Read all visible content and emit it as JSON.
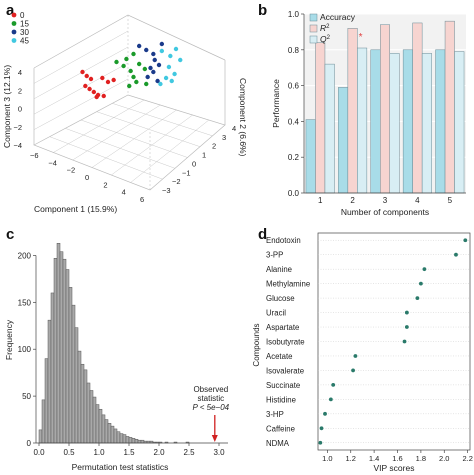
{
  "panels": {
    "a": "a",
    "b": "b",
    "c": "c",
    "d": "d"
  },
  "chart_data": [
    {
      "type": "scatter",
      "title": "",
      "xlabel": "Component 1 (15.9%)",
      "ylabel": "Component 3 (12.1%)",
      "zlabel": "Component 2 (6.6%)",
      "x_ticks": [
        "−6",
        "−4",
        "−2",
        "0",
        "2",
        "4",
        "6"
      ],
      "y_ticks": [
        "−4",
        "−2",
        "0",
        "2",
        "4"
      ],
      "z_ticks": [
        "−3",
        "−2",
        "−1",
        "0",
        "1",
        "2",
        "3",
        "4"
      ],
      "legend": [
        {
          "label": "0",
          "color": "#e02020"
        },
        {
          "label": "15",
          "color": "#1a9a2a"
        },
        {
          "label": "30",
          "color": "#1a3a8a"
        },
        {
          "label": "45",
          "color": "#40c8e0"
        }
      ],
      "legend_placement": "top-left",
      "series": [
        {
          "name": "0",
          "color": "#e02020",
          "points": [
            [
              -3.0,
              0.8,
              0
            ],
            [
              -2.7,
              0.4,
              0
            ],
            [
              -2.4,
              0.1,
              0
            ],
            [
              -2.8,
              -0.6,
              0
            ],
            [
              -2.5,
              -0.9,
              0
            ],
            [
              -2.2,
              -1.2,
              0
            ],
            [
              -1.9,
              -1.5,
              0
            ],
            [
              -1.5,
              -1.6,
              0
            ],
            [
              -1.2,
              -0.2,
              0
            ],
            [
              -0.8,
              0.0,
              0
            ],
            [
              -1.6,
              0.2,
              0
            ],
            [
              -2.0,
              -1.7,
              0
            ]
          ]
        },
        {
          "name": "15",
          "color": "#1a9a2a",
          "points": [
            [
              -0.6,
              1.8,
              0
            ],
            [
              0.1,
              2.1,
              0
            ],
            [
              -0.1,
              1.4,
              0
            ],
            [
              0.4,
              0.9,
              0
            ],
            [
              0.6,
              0.3,
              0
            ],
            [
              0.8,
              -0.2,
              0
            ],
            [
              0.3,
              -0.6,
              0
            ],
            [
              1.0,
              1.6,
              0
            ],
            [
              1.4,
              1.1,
              0
            ],
            [
              0.6,
              2.6,
              0
            ],
            [
              1.5,
              -0.4,
              0
            ]
          ]
        },
        {
          "name": "30",
          "color": "#1a3a8a",
          "points": [
            [
              1.0,
              3.4,
              0
            ],
            [
              1.5,
              3.0,
              0
            ],
            [
              2.0,
              2.6,
              0
            ],
            [
              2.1,
              2.0,
              0
            ],
            [
              1.8,
              1.2,
              0
            ],
            [
              2.0,
              0.8,
              0
            ],
            [
              2.3,
              -0.1,
              0
            ],
            [
              1.6,
              0.3,
              0
            ],
            [
              2.4,
              1.5,
              0
            ],
            [
              2.6,
              3.6,
              0
            ]
          ]
        },
        {
          "name": "45",
          "color": "#40c8e0",
          "points": [
            [
              2.6,
              2.9,
              0
            ],
            [
              3.2,
              2.4,
              0
            ],
            [
              3.6,
              3.1,
              0
            ],
            [
              3.9,
              2.0,
              0
            ],
            [
              3.1,
              1.3,
              0
            ],
            [
              3.5,
              0.6,
              0
            ],
            [
              2.9,
              0.2,
              0
            ],
            [
              2.5,
              -0.4,
              0
            ],
            [
              3.3,
              -0.1,
              0
            ]
          ]
        }
      ]
    },
    {
      "type": "bar",
      "title": "",
      "xlabel": "Number of components",
      "ylabel": "Performance",
      "categories": [
        "1",
        "2",
        "3",
        "4",
        "5"
      ],
      "yticks": [
        "0.0",
        "0.2",
        "0.4",
        "0.6",
        "0.8",
        "1.0"
      ],
      "ylim": [
        0,
        1.0
      ],
      "grid": true,
      "legend_placement": "top-left",
      "series": [
        {
          "name": "Accuracy",
          "color": "#a8dce8",
          "values": [
            0.41,
            0.59,
            0.8,
            0.8,
            0.8
          ]
        },
        {
          "name": "R",
          "sup": "2",
          "color": "#f7d4d0",
          "values": [
            0.84,
            0.92,
            0.94,
            0.95,
            0.96
          ]
        },
        {
          "name": "Q",
          "sup": "2",
          "color": "#d8eef4",
          "values": [
            0.72,
            0.81,
            0.78,
            0.78,
            0.79
          ]
        }
      ],
      "annotations": [
        {
          "text": "*",
          "category": "2",
          "value": 0.85,
          "color": "#e04040"
        }
      ]
    },
    {
      "type": "bar",
      "subtype": "histogram",
      "title": "",
      "xlabel": "Permutation test statistics",
      "ylabel": "Frequency",
      "xticks": [
        "0.0",
        "0.5",
        "1.0",
        "1.5",
        "2.0",
        "2.5",
        "3.0"
      ],
      "yticks": [
        "0",
        "50",
        "100",
        "150",
        "200"
      ],
      "xlim": [
        -0.05,
        3.15
      ],
      "ylim": [
        0,
        225
      ],
      "bin_width": 0.05,
      "bin_start": 0.0,
      "values": [
        14,
        46,
        90,
        131,
        160,
        197,
        213,
        204,
        196,
        185,
        166,
        147,
        123,
        98,
        84,
        78,
        64,
        56,
        49,
        41,
        36,
        30,
        25,
        21,
        18,
        15,
        12,
        10,
        9,
        7,
        6,
        5,
        4,
        3,
        3,
        2,
        2,
        2,
        1,
        1,
        1,
        0,
        1,
        0,
        0,
        1,
        0,
        0,
        0,
        1
      ],
      "color": "#a9a9a9",
      "annotation": {
        "line1": "Observed",
        "line2": "statistic",
        "line3": "P < 5e−04",
        "x": 2.93,
        "color": "#d02020"
      }
    },
    {
      "type": "scatter",
      "subtype": "dot",
      "title": "",
      "xlabel": "VIP scores",
      "ylabel": "Compounds",
      "xticks": [
        "1.0",
        "1.2",
        "1.4",
        "1.6",
        "1.8",
        "2.0",
        "2.2"
      ],
      "xlim": [
        0.92,
        2.22
      ],
      "grid": true,
      "categories": [
        "Endotoxin",
        "3-PP",
        "Alanine",
        "Methylamine",
        "Glucose",
        "Uracil",
        "Aspartate",
        "Isobutyrate",
        "Acetate",
        "Isovalerate",
        "Succinate",
        "Histidine",
        "3-HP",
        "Caffeine",
        "NDMA"
      ],
      "values": [
        2.18,
        2.1,
        1.83,
        1.8,
        1.77,
        1.68,
        1.68,
        1.66,
        1.24,
        1.22,
        1.05,
        1.03,
        0.98,
        0.95,
        0.94
      ],
      "color": "#2a7a6a"
    }
  ]
}
